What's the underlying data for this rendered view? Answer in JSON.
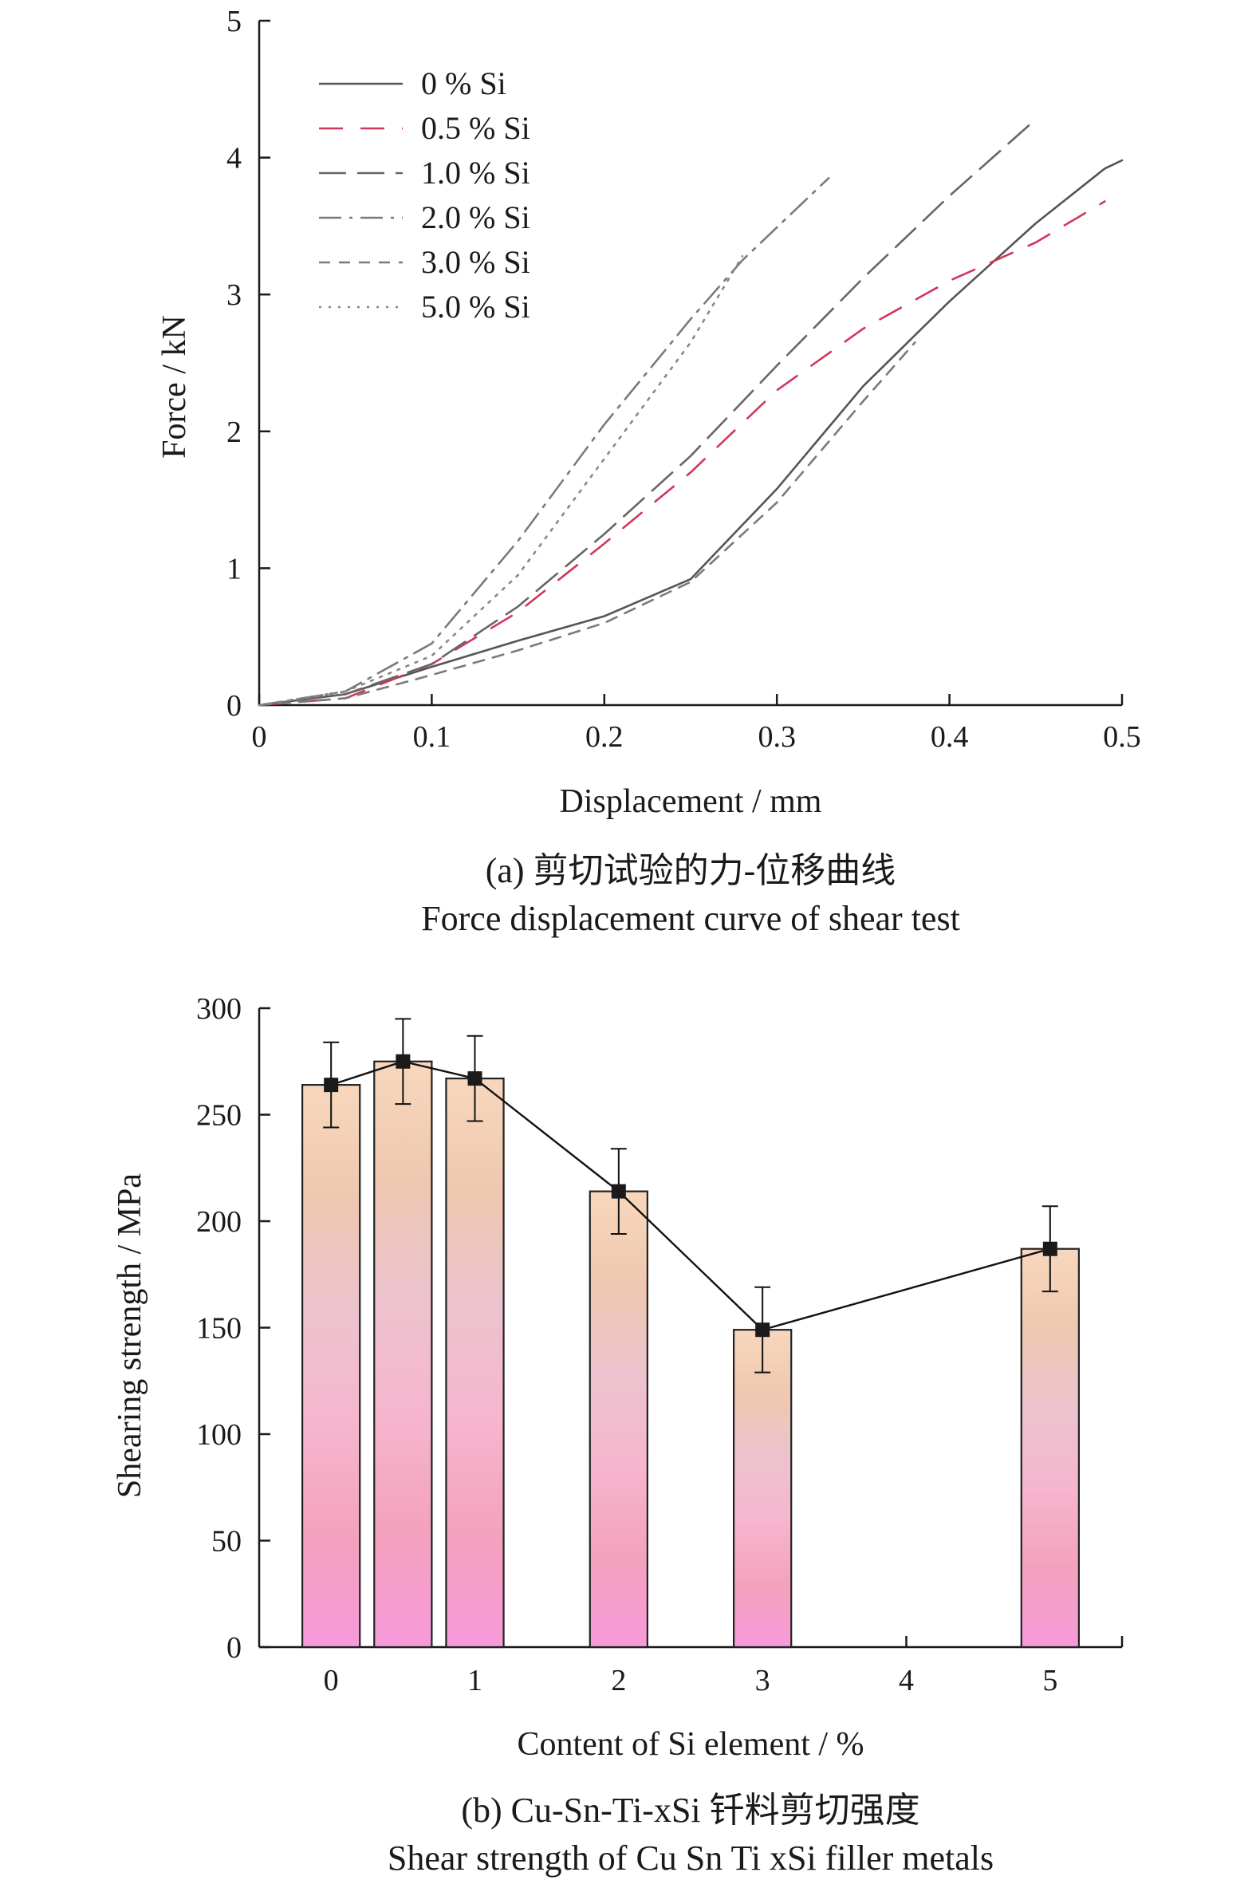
{
  "chart_data": [
    {
      "type": "line",
      "caption_cn": "(a) 剪切试验的力-位移曲线",
      "caption_en": "Force displacement curve of shear test",
      "xlabel": "Displacement / mm",
      "ylabel": "Force / kN",
      "xlim": [
        0,
        0.5
      ],
      "ylim": [
        0,
        5
      ],
      "xticks": [
        "0",
        "0.1",
        "0.2",
        "0.3",
        "0.4",
        "0.5"
      ],
      "yticks": [
        "0",
        "1",
        "2",
        "3",
        "4",
        "5"
      ],
      "legend_position": "top-left",
      "series": [
        {
          "name": "0 % Si",
          "color": "#555555",
          "dash": "solid",
          "x": [
            0,
            0.05,
            0.1,
            0.15,
            0.2,
            0.25,
            0.3,
            0.35,
            0.4,
            0.45,
            0.49,
            0.5
          ],
          "y": [
            0,
            0.08,
            0.28,
            0.47,
            0.65,
            0.92,
            1.58,
            2.33,
            2.95,
            3.52,
            3.92,
            3.98
          ]
        },
        {
          "name": "0.5 % Si",
          "color": "#d2365a",
          "dash": "dash",
          "x": [
            0,
            0.05,
            0.1,
            0.15,
            0.2,
            0.25,
            0.3,
            0.35,
            0.4,
            0.45,
            0.49
          ],
          "y": [
            0,
            0.05,
            0.3,
            0.68,
            1.18,
            1.7,
            2.3,
            2.75,
            3.1,
            3.38,
            3.68
          ]
        },
        {
          "name": "1.0 % Si",
          "color": "#666666",
          "dash": "longdash",
          "x": [
            0,
            0.05,
            0.1,
            0.15,
            0.2,
            0.25,
            0.3,
            0.35,
            0.4,
            0.45
          ],
          "y": [
            0,
            0.08,
            0.3,
            0.72,
            1.25,
            1.82,
            2.48,
            3.12,
            3.72,
            4.28
          ]
        },
        {
          "name": "2.0 % Si",
          "color": "#7a7a7a",
          "dash": "dashdot",
          "x": [
            0,
            0.05,
            0.1,
            0.15,
            0.2,
            0.25,
            0.28,
            0.33
          ],
          "y": [
            0,
            0.1,
            0.45,
            1.2,
            2.05,
            2.82,
            3.25,
            3.85
          ]
        },
        {
          "name": "3.0 % Si",
          "color": "#7a7a7a",
          "dash": "shortdash",
          "x": [
            0,
            0.05,
            0.1,
            0.15,
            0.2,
            0.25,
            0.3,
            0.35,
            0.38
          ],
          "y": [
            0,
            0.05,
            0.22,
            0.4,
            0.6,
            0.9,
            1.48,
            2.22,
            2.65
          ]
        },
        {
          "name": "5.0 % Si",
          "color": "#888888",
          "dash": "dotted",
          "x": [
            0,
            0.05,
            0.1,
            0.15,
            0.2,
            0.25,
            0.28
          ],
          "y": [
            0,
            0.1,
            0.36,
            0.95,
            1.8,
            2.65,
            3.28
          ]
        }
      ]
    },
    {
      "type": "bar",
      "caption_cn": "(b) Cu-Sn-Ti-xSi 钎料剪切强度",
      "caption_en": "Shear strength of Cu Sn Ti xSi filler metals",
      "xlabel": "Content of Si element / %",
      "ylabel": "Shearing strength / MPa",
      "xlim": [
        -0.5,
        5.5
      ],
      "ylim": [
        0,
        300
      ],
      "xticks": [
        "0",
        "1",
        "2",
        "3",
        "4",
        "5"
      ],
      "yticks": [
        "0",
        "50",
        "100",
        "150",
        "200",
        "250",
        "300"
      ],
      "x": [
        0,
        0.5,
        1,
        2,
        3,
        5
      ],
      "values": [
        264,
        275,
        267,
        214,
        149,
        187
      ],
      "error": [
        20,
        20,
        20,
        20,
        20,
        20
      ],
      "bar_gradient": [
        "#f79adb",
        "#f3a2bd",
        "#f6b6ce",
        "#ecc3ce",
        "#eec8b0",
        "#f8d7bd"
      ]
    }
  ]
}
